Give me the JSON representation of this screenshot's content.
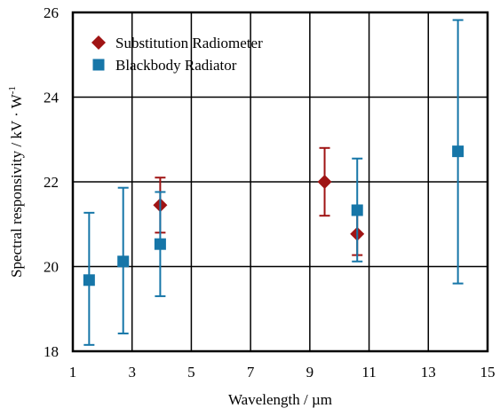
{
  "chart_data": {
    "type": "scatter",
    "xlabel": "Wavelength  / µm",
    "ylabel": "Spectral responsivity / kV · W",
    "ylabel_sup": "-1",
    "xlim": [
      1,
      15
    ],
    "ylim": [
      18,
      26
    ],
    "xticks": [
      1,
      3,
      5,
      7,
      9,
      11,
      13,
      15
    ],
    "yticks": [
      18,
      20,
      22,
      24,
      26
    ],
    "xtick_labels": [
      "1",
      "3",
      "5",
      "7",
      "9",
      "11",
      "13",
      "15"
    ],
    "ytick_labels": [
      "18",
      "20",
      "22",
      "24",
      "26"
    ],
    "grid": true,
    "legend_position": "top-left",
    "series": [
      {
        "name": "Substitution Radiometer",
        "marker": "diamond",
        "color": "#a01414",
        "points": [
          {
            "x": 3.95,
            "y": 21.45,
            "err_low": 20.8,
            "err_high": 22.1
          },
          {
            "x": 9.5,
            "y": 22.0,
            "err_low": 21.2,
            "err_high": 22.8
          },
          {
            "x": 10.6,
            "y": 20.77,
            "err_low": 20.27,
            "err_high": 21.27
          }
        ]
      },
      {
        "name": "Blackbody Radiator",
        "marker": "square",
        "color": "#1676a8",
        "points": [
          {
            "x": 1.55,
            "y": 19.68,
            "err_low": 18.15,
            "err_high": 21.27
          },
          {
            "x": 2.7,
            "y": 20.12,
            "err_low": 18.42,
            "err_high": 21.86
          },
          {
            "x": 3.95,
            "y": 20.53,
            "err_low": 19.3,
            "err_high": 21.76
          },
          {
            "x": 10.6,
            "y": 21.33,
            "err_low": 20.12,
            "err_high": 22.55
          },
          {
            "x": 14.0,
            "y": 22.72,
            "err_low": 19.6,
            "err_high": 25.82
          }
        ]
      }
    ]
  }
}
